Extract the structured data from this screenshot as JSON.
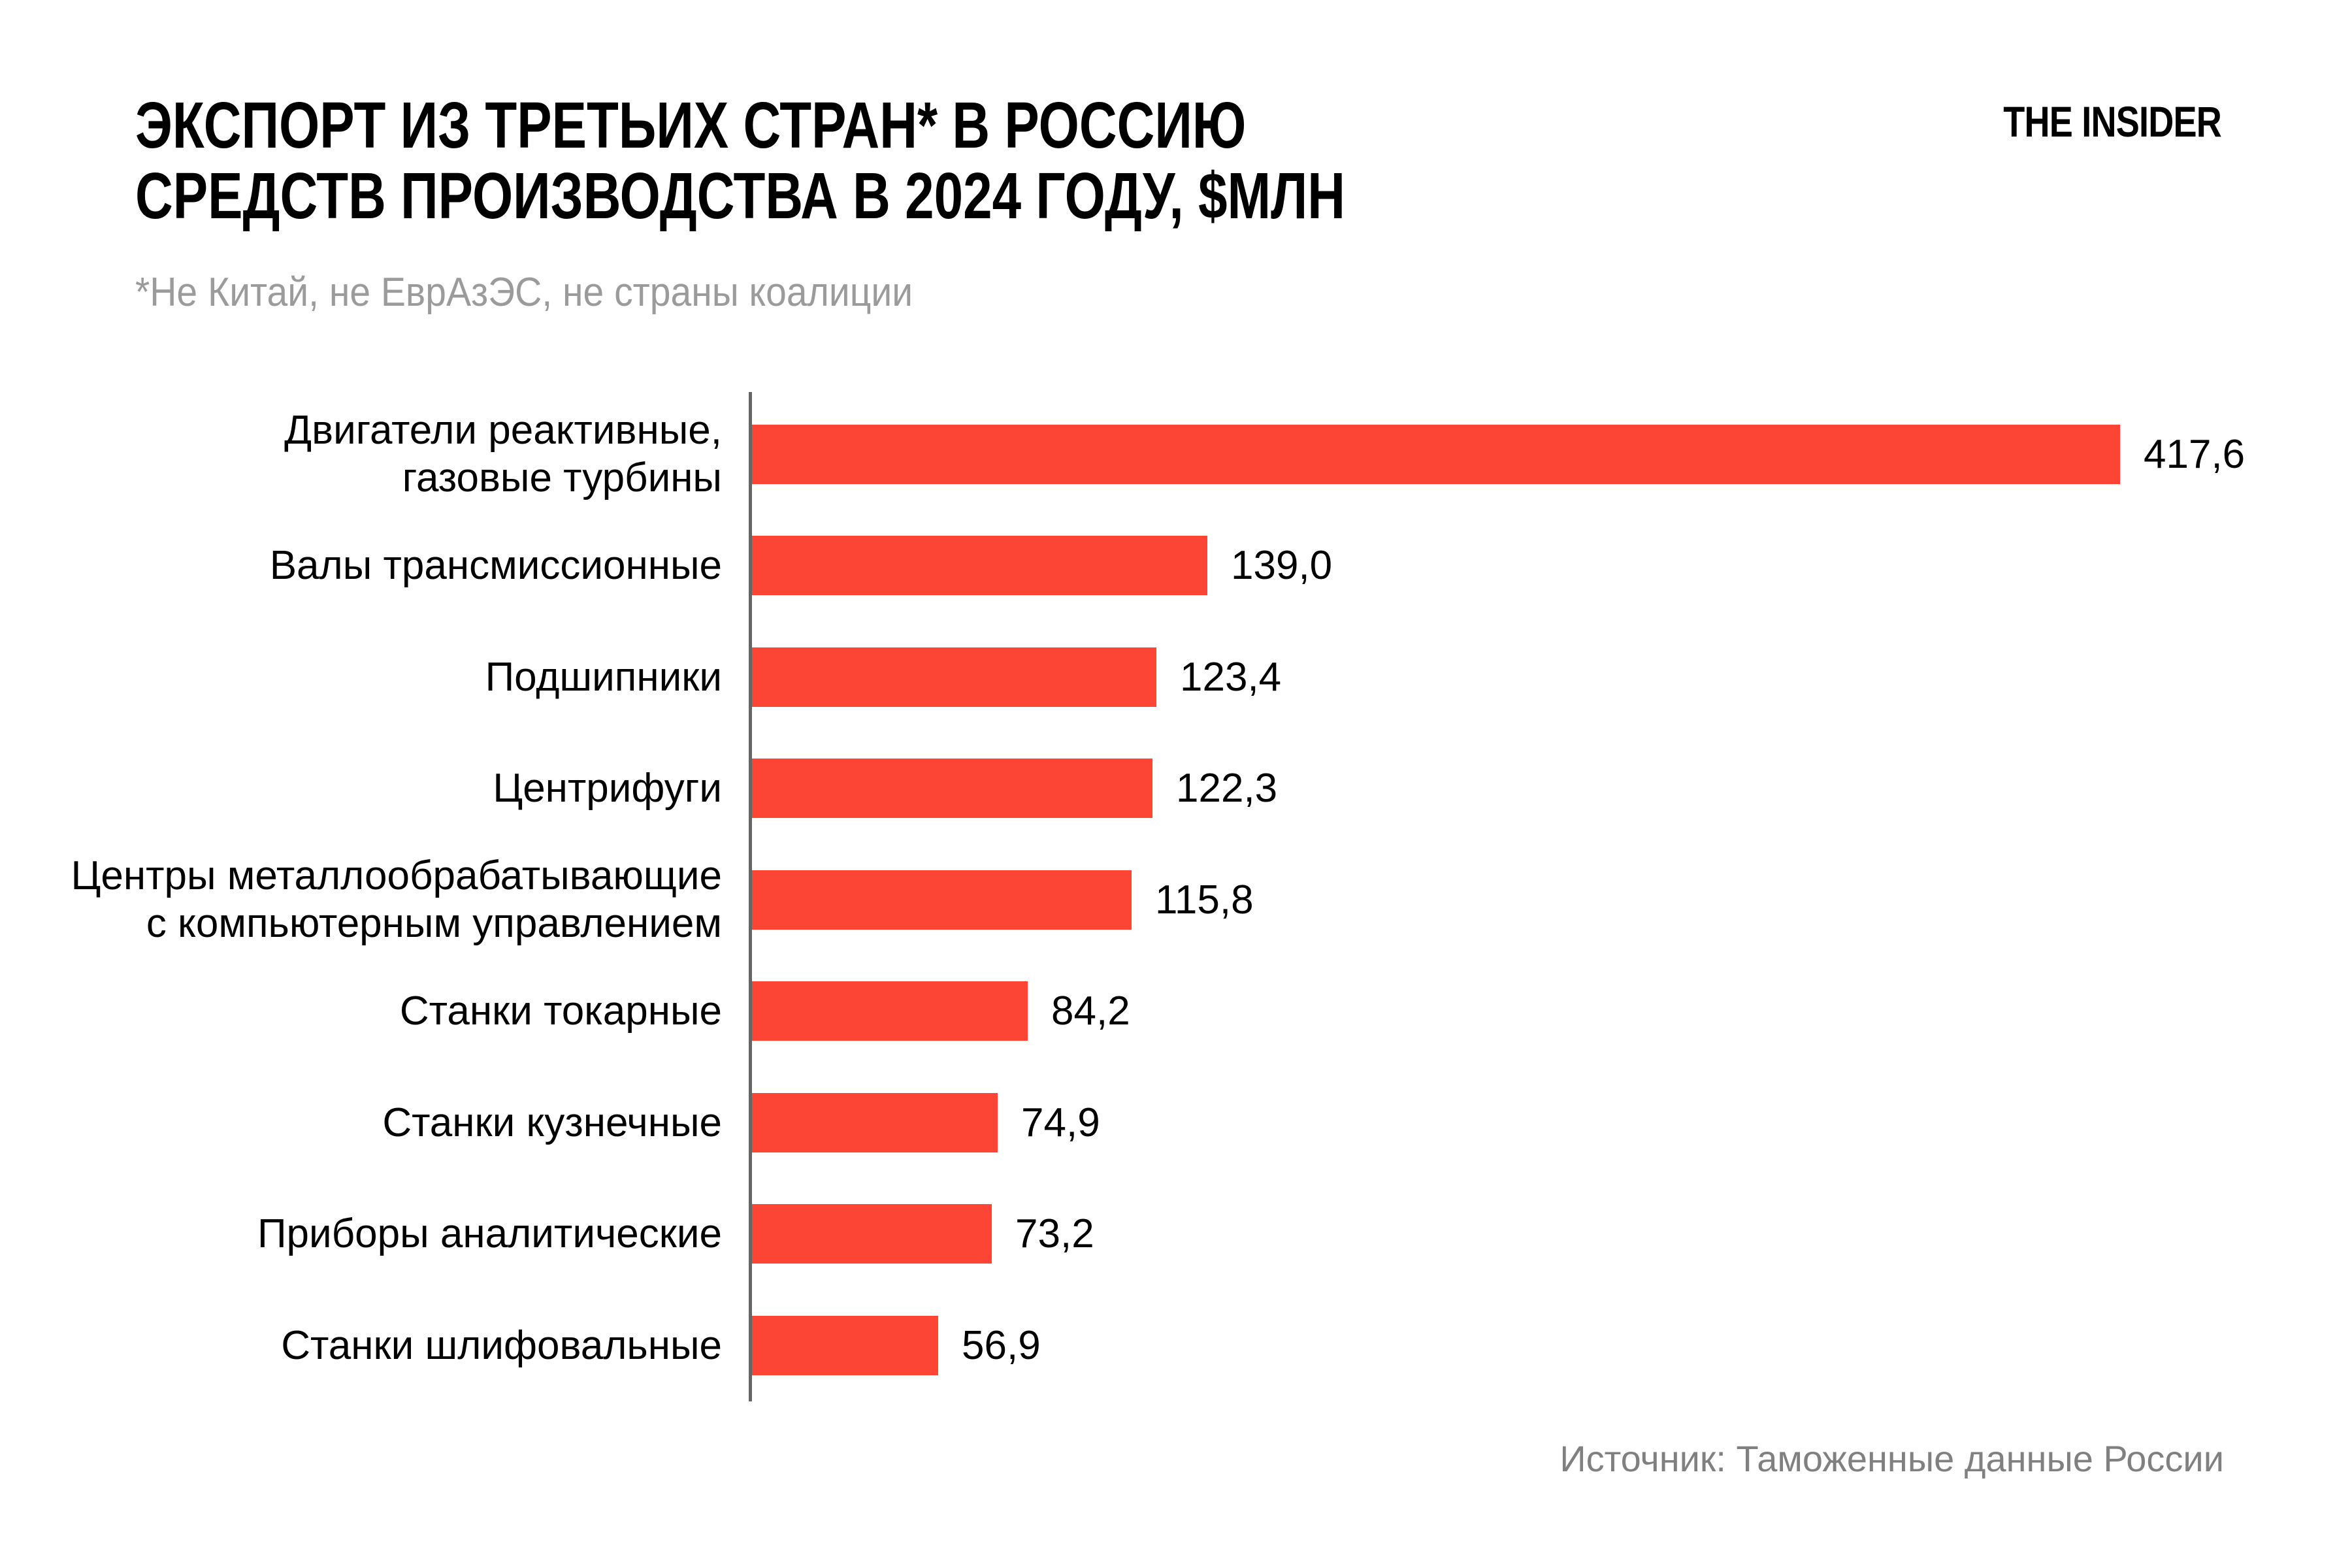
{
  "header": {
    "title_line1": "ЭКСПОРТ ИЗ ТРЕТЬИХ СТРАН* В РОССИЮ",
    "title_line2": "СРЕДСТВ ПРОИЗВОДСТВА В 2024 ГОДУ, $МЛН",
    "subtitle": "*Не Китай, не ЕврАзЭС, не страны коалиции",
    "logo": "THE INSIDER"
  },
  "footer": {
    "source": "Источник: Таможенные данные России"
  },
  "chart_data": {
    "type": "bar",
    "orientation": "horizontal",
    "title": "ЭКСПОРТ ИЗ ТРЕТЬИХ СТРАН* В РОССИЮ СРЕДСТВ ПРОИЗВОДСТВА В 2024 ГОДУ, $МЛН",
    "footnote": "*Не Китай, не ЕврАзЭС, не страны коалиции",
    "source": "Источник: Таможенные данные России",
    "unit": "$млн",
    "bar_color": "#fd4535",
    "axis_color": "#666666",
    "legend": "none",
    "grid": false,
    "xlim": [
      0,
      440
    ],
    "categories": [
      "Двигатели реактивные, газовые турбины",
      "Валы трансмиссионные",
      "Подшипники",
      "Центрифуги",
      "Центры металлообрабатывающие с компьютерным управлением",
      "Станки токарные",
      "Станки кузнечные",
      "Приборы аналитические",
      "Станки шлифовальные"
    ],
    "values": [
      417.6,
      139.0,
      123.4,
      122.3,
      115.8,
      84.2,
      74.9,
      73.2,
      56.9
    ],
    "bars": [
      {
        "label_lines": [
          "Двигатели реактивные,",
          "газовые турбины"
        ],
        "value": 417.6,
        "value_label": "417,6"
      },
      {
        "label_lines": [
          "Валы трансмиссионные"
        ],
        "value": 139.0,
        "value_label": "139,0"
      },
      {
        "label_lines": [
          "Подшипники"
        ],
        "value": 123.4,
        "value_label": "123,4"
      },
      {
        "label_lines": [
          "Центрифуги"
        ],
        "value": 122.3,
        "value_label": "122,3"
      },
      {
        "label_lines": [
          "Центры металлообрабатывающие",
          "с компьютерным управлением"
        ],
        "value": 115.8,
        "value_label": "115,8"
      },
      {
        "label_lines": [
          "Станки токарные"
        ],
        "value": 84.2,
        "value_label": "84,2"
      },
      {
        "label_lines": [
          "Станки кузнечные"
        ],
        "value": 74.9,
        "value_label": "74,9"
      },
      {
        "label_lines": [
          "Приборы аналитические"
        ],
        "value": 73.2,
        "value_label": "73,2"
      },
      {
        "label_lines": [
          "Станки шлифовальные"
        ],
        "value": 56.9,
        "value_label": "56,9"
      }
    ]
  }
}
